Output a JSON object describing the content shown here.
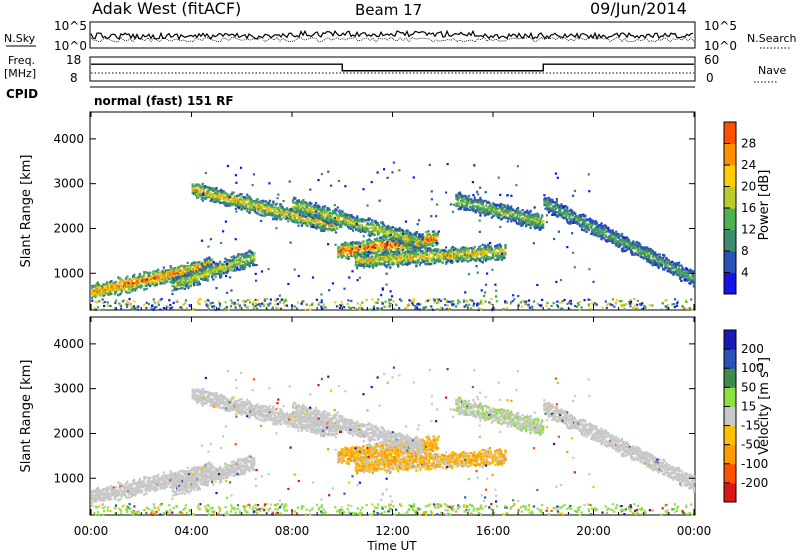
{
  "header": {
    "radar": "Adak West (fitACF)",
    "beam": "Beam 17",
    "date": "09/Jun/2014"
  },
  "noise_panel": {
    "left_label": "N.Sky",
    "right_label": "N.Search",
    "left_ticks": [
      "10^5",
      "10^0"
    ],
    "right_ticks": [
      "10^5",
      "10^0"
    ]
  },
  "freq_panel": {
    "left_label_line1": "Freq.",
    "left_label_line2": "[MHz]",
    "right_label": "Nave",
    "left_ticks": [
      "18",
      "8"
    ],
    "right_ticks": [
      "60",
      "0"
    ],
    "freq_steps": [
      {
        "t_start": 0,
        "t_end": 10,
        "level": 0.72
      },
      {
        "t_start": 10,
        "t_end": 18,
        "level": 0.42
      },
      {
        "t_start": 18,
        "t_end": 24,
        "level": 0.72
      }
    ]
  },
  "cpid_panel": {
    "label": "CPID",
    "text": "normal (fast) 151 RF"
  },
  "colors": {
    "power": [
      "#1414e6",
      "#2a52b8",
      "#3c8c6e",
      "#4fb04f",
      "#b8cc2e",
      "#ffcc00",
      "#ff9000",
      "#ff5000",
      "#e01010"
    ],
    "velocity": [
      "#d81818",
      "#ff5000",
      "#ff9a00",
      "#ffc000",
      "#c8c8c8",
      "#8ce040",
      "#3c8c50",
      "#2a52b8",
      "#1a1ab4"
    ],
    "velocity_gray": "#c8c8c8"
  },
  "chart_data": [
    {
      "type": "heatmap",
      "name": "power",
      "title": "",
      "ylabel": "Slant Range [km]",
      "xlabel": "",
      "xlim": [
        0,
        24
      ],
      "ylim": [
        180,
        4600
      ],
      "yticks": [
        1000,
        2000,
        3000,
        4000
      ],
      "xticks": [
        0,
        4,
        8,
        12,
        16,
        20,
        24
      ],
      "colorbar": {
        "label": "Power [dB]",
        "ticks": [
          "4",
          "8",
          "12",
          "16",
          "20",
          "24",
          "28"
        ],
        "range": [
          0,
          30
        ]
      },
      "echo_bands": [
        {
          "t_start": 0.0,
          "t_end": 4.8,
          "r_start": 600,
          "r_end": 1200,
          "strength": 20
        },
        {
          "t_start": 3.2,
          "t_end": 6.5,
          "r_start": 750,
          "r_end": 1400,
          "strength": 14
        },
        {
          "t_start": 4.0,
          "t_end": 9.8,
          "r_start": 2900,
          "r_end": 2050,
          "strength": 16
        },
        {
          "t_start": 9.8,
          "t_end": 13.8,
          "r_start": 1500,
          "r_end": 1800,
          "strength": 22
        },
        {
          "t_start": 8.0,
          "t_end": 13.2,
          "r_start": 2550,
          "r_end": 1700,
          "strength": 14
        },
        {
          "t_start": 10.5,
          "t_end": 16.5,
          "r_start": 1300,
          "r_end": 1500,
          "strength": 16
        },
        {
          "t_start": 14.5,
          "t_end": 18.0,
          "r_start": 2650,
          "r_end": 2150,
          "strength": 12
        },
        {
          "t_start": 18.0,
          "t_end": 24.0,
          "r_start": 2600,
          "r_end": 900,
          "strength": 10
        }
      ]
    },
    {
      "type": "heatmap",
      "name": "velocity",
      "title": "",
      "ylabel": "Slant Range [km]",
      "xlabel": "Time UT",
      "xlim": [
        0,
        24
      ],
      "ylim": [
        180,
        4600
      ],
      "yticks": [
        1000,
        2000,
        3000,
        4000
      ],
      "xticks": [
        0,
        4,
        8,
        12,
        16,
        20,
        24
      ],
      "xtick_labels": [
        "00:00",
        "04:00",
        "08:00",
        "12:00",
        "16:00",
        "20:00",
        "00:00"
      ],
      "colorbar": {
        "label": "Velocity [m s^-1]",
        "ticks": [
          "-200",
          "-100",
          "-50",
          "-15",
          "15",
          "50",
          "100",
          "200"
        ],
        "range": [
          -250,
          250
        ]
      }
    }
  ]
}
